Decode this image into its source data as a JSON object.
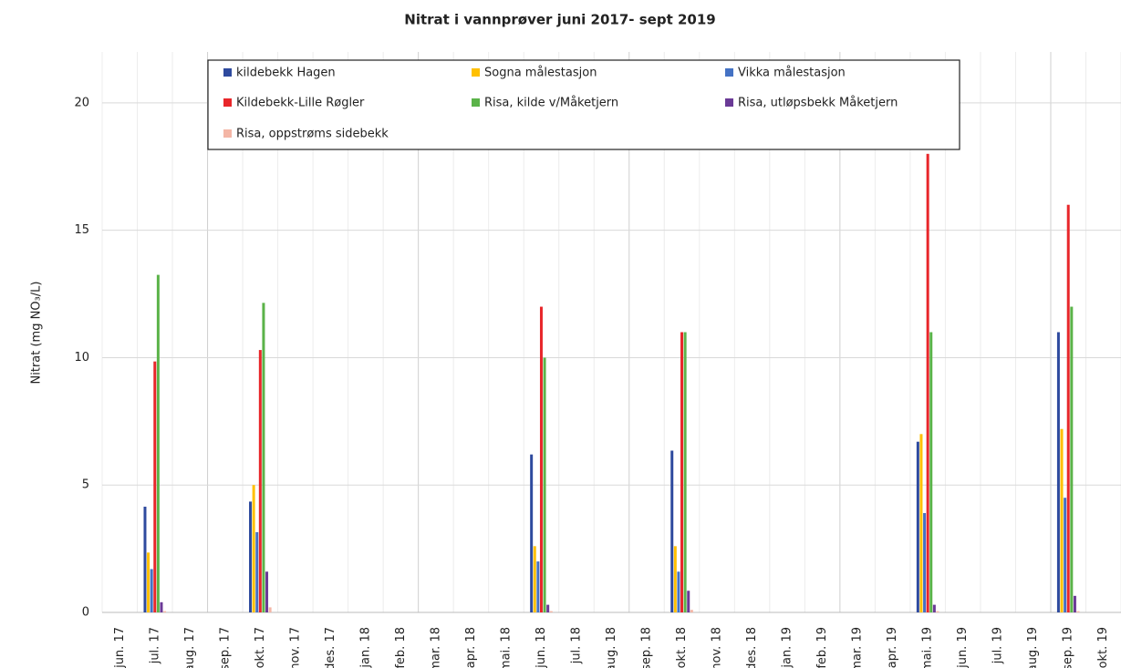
{
  "chart_data": {
    "type": "bar",
    "title": "Nitrat i vannprøver juni 2017- sept 2019",
    "ylabel": "Nitrat (mg NO₃/L)",
    "categories": [
      "jun. 17",
      "jul. 17",
      "aug. 17",
      "sep. 17",
      "okt. 17",
      "nov. 17",
      "des. 17",
      "jan. 18",
      "feb. 18",
      "mar. 18",
      "apr. 18",
      "mai. 18",
      "jun. 18",
      "jul. 18",
      "aug. 18",
      "sep. 18",
      "okt. 18",
      "nov. 18",
      "des. 18",
      "jan. 19",
      "feb. 19",
      "mar. 19",
      "apr. 19",
      "mai. 19",
      "jun. 19",
      "jul. 19",
      "aug. 19",
      "sep. 19",
      "okt. 19"
    ],
    "series": [
      {
        "name": "kildebekk Hagen",
        "color": "#2e4a9e",
        "values": [
          null,
          4.15,
          null,
          null,
          4.35,
          null,
          null,
          null,
          null,
          null,
          null,
          null,
          6.2,
          null,
          null,
          null,
          6.35,
          null,
          null,
          null,
          null,
          null,
          null,
          6.7,
          null,
          null,
          null,
          11.0,
          null
        ]
      },
      {
        "name": "Sogna målestasjon",
        "color": "#ffc000",
        "values": [
          null,
          2.35,
          null,
          null,
          5.0,
          null,
          null,
          null,
          null,
          null,
          null,
          null,
          2.6,
          null,
          null,
          null,
          2.6,
          null,
          null,
          null,
          null,
          null,
          null,
          7.0,
          null,
          null,
          null,
          7.2,
          null
        ]
      },
      {
        "name": "Vikka målestasjon",
        "color": "#4472c4",
        "values": [
          null,
          1.7,
          null,
          null,
          3.15,
          null,
          null,
          null,
          null,
          null,
          null,
          null,
          2.0,
          null,
          null,
          null,
          1.6,
          null,
          null,
          null,
          null,
          null,
          null,
          3.9,
          null,
          null,
          null,
          4.5,
          null
        ]
      },
      {
        "name": "Kildebekk-Lille Røgler",
        "color": "#e8262a",
        "values": [
          null,
          9.85,
          null,
          null,
          10.3,
          null,
          null,
          null,
          null,
          null,
          null,
          null,
          12.0,
          null,
          null,
          null,
          11.0,
          null,
          null,
          null,
          null,
          null,
          null,
          18.0,
          null,
          null,
          null,
          16.0,
          null
        ]
      },
      {
        "name": "Risa, kilde v/Måketjern",
        "color": "#5bb349",
        "values": [
          null,
          13.25,
          null,
          null,
          12.15,
          null,
          null,
          null,
          null,
          null,
          null,
          null,
          10.0,
          null,
          null,
          null,
          11.0,
          null,
          null,
          null,
          null,
          null,
          null,
          11.0,
          null,
          null,
          null,
          12.0,
          null
        ]
      },
      {
        "name": "Risa, utløpsbekk Måketjern",
        "color": "#6a3a96",
        "values": [
          null,
          0.4,
          null,
          null,
          1.6,
          null,
          null,
          null,
          null,
          null,
          null,
          null,
          0.3,
          null,
          null,
          null,
          0.85,
          null,
          null,
          null,
          null,
          null,
          null,
          0.3,
          null,
          null,
          null,
          0.65,
          null
        ]
      },
      {
        "name": "Risa, oppstrøms sidebekk",
        "color": "#f4b6a6",
        "values": [
          null,
          0.05,
          null,
          null,
          0.2,
          null,
          null,
          null,
          null,
          null,
          null,
          null,
          0.05,
          null,
          null,
          null,
          0.1,
          null,
          null,
          null,
          null,
          null,
          null,
          0.05,
          null,
          null,
          null,
          0.05,
          null
        ]
      }
    ],
    "ylim": [
      0,
      22
    ],
    "yticks": [
      0,
      5,
      10,
      15,
      20
    ],
    "grid": true,
    "legend": "top"
  }
}
